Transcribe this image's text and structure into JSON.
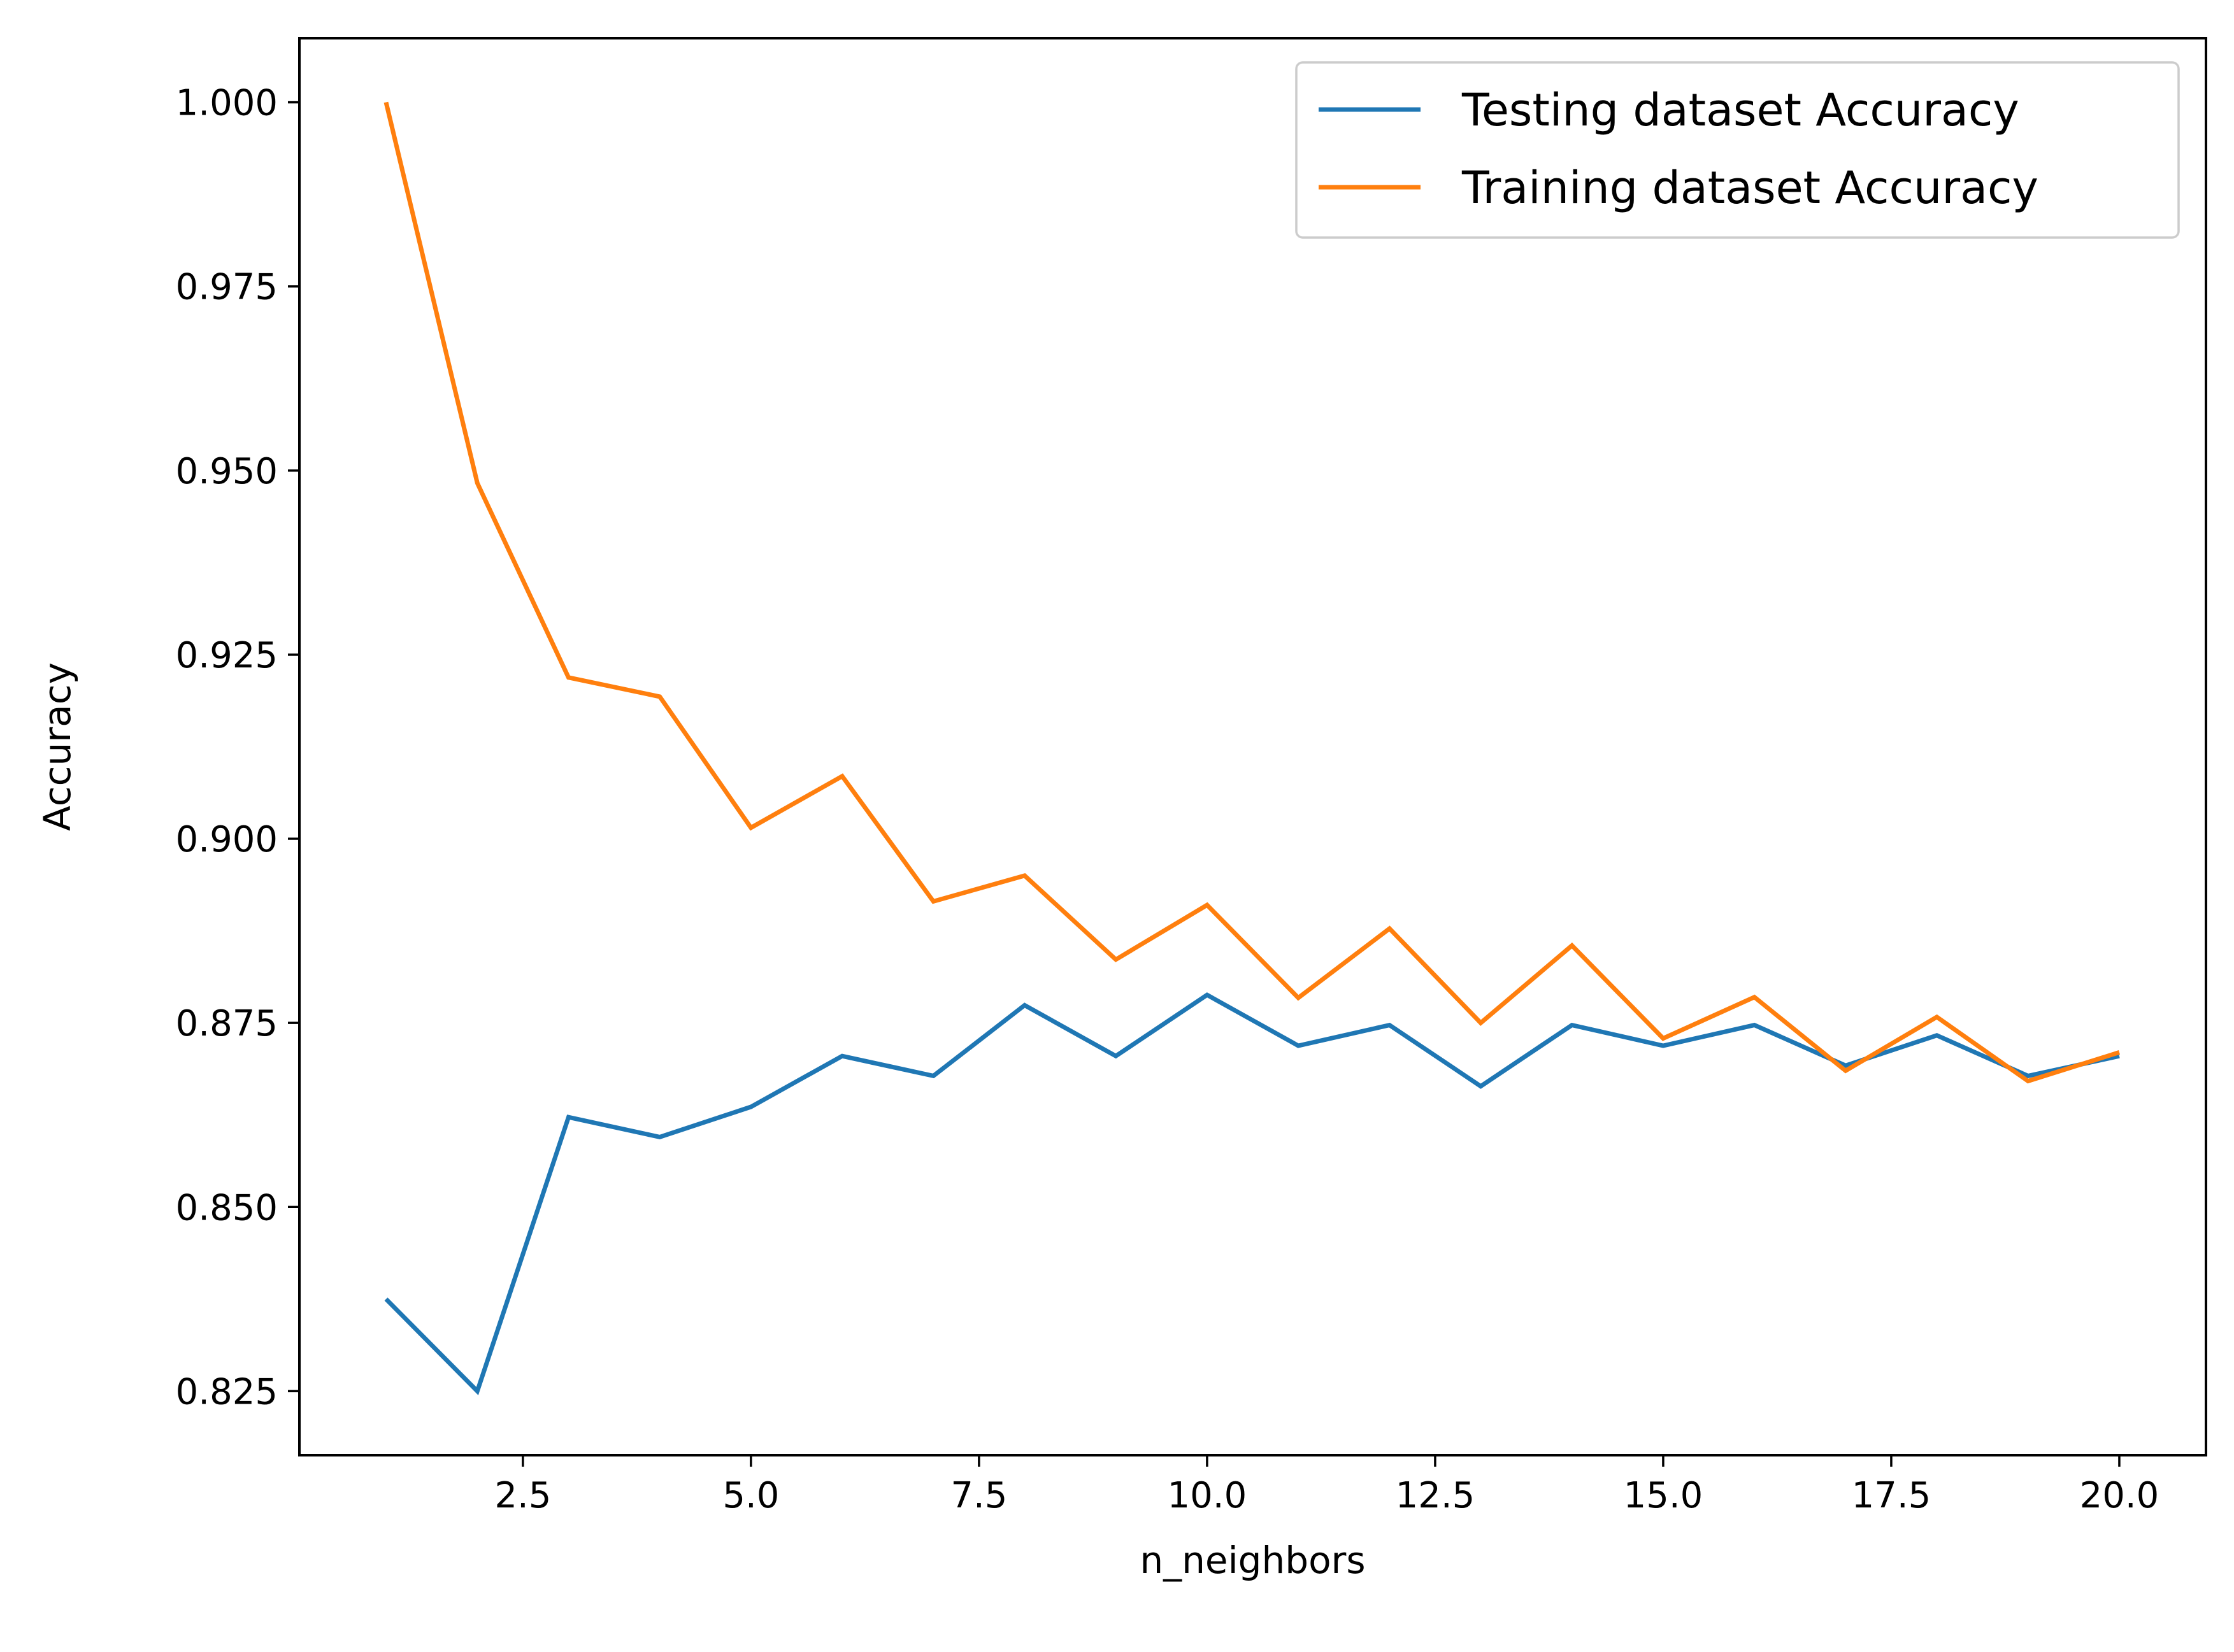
{
  "chart_data": {
    "type": "line",
    "title": "",
    "xlabel": "n_neighbors",
    "ylabel": "Accuracy",
    "xlim": [
      0.05,
      20.95
    ],
    "ylim": [
      0.8163,
      1.0087
    ],
    "xticks": [
      2.5,
      5.0,
      7.5,
      10.0,
      12.5,
      15.0,
      17.5,
      20.0
    ],
    "xtick_labels": [
      "2.5",
      "5.0",
      "7.5",
      "10.0",
      "12.5",
      "15.0",
      "17.5",
      "20.0"
    ],
    "yticks": [
      0.825,
      0.85,
      0.875,
      0.9,
      0.925,
      0.95,
      0.975,
      1.0
    ],
    "ytick_labels": [
      "0.825",
      "0.850",
      "0.875",
      "0.900",
      "0.925",
      "0.950",
      "0.975",
      "1.000"
    ],
    "grid": false,
    "legend_position": "top-right",
    "x": [
      1,
      2,
      3,
      4,
      5,
      6,
      7,
      8,
      9,
      10,
      11,
      12,
      13,
      14,
      15,
      16,
      17,
      18,
      19,
      20
    ],
    "series": [
      {
        "name": "Testing dataset Accuracy",
        "color": "#1f77b4",
        "values": [
          0.8375,
          0.825,
          0.8622,
          0.8595,
          0.8636,
          0.8705,
          0.8678,
          0.8774,
          0.8705,
          0.8788,
          0.8719,
          0.8747,
          0.8664,
          0.8747,
          0.8719,
          0.8747,
          0.8692,
          0.8733,
          0.8678,
          0.8705
        ]
      },
      {
        "name": "Training dataset Accuracy",
        "color": "#ff7f0e",
        "values": [
          1.0,
          0.9483,
          0.9219,
          0.9193,
          0.9015,
          0.9085,
          0.8915,
          0.895,
          0.8836,
          0.891,
          0.8784,
          0.8878,
          0.875,
          0.8855,
          0.8729,
          0.8785,
          0.8685,
          0.8758,
          0.8671,
          0.871
        ]
      }
    ]
  }
}
